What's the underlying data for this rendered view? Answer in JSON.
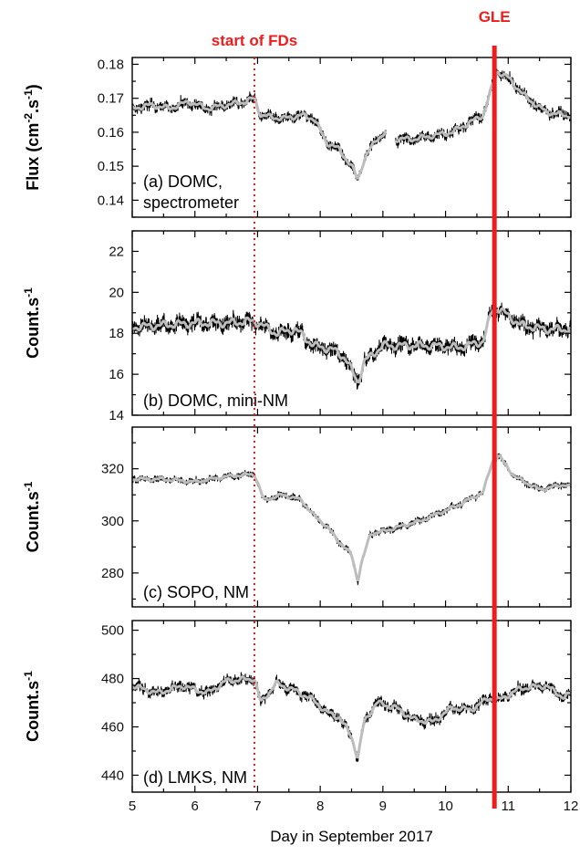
{
  "chart_data": {
    "type": "line",
    "x_axis": {
      "label": "Day in September 2017",
      "range": [
        5,
        12
      ],
      "ticks": [
        5,
        6,
        7,
        8,
        9,
        10,
        11,
        12
      ],
      "tick_labels": [
        "5",
        "6",
        "7",
        "8",
        "9",
        "10",
        "11",
        "12"
      ]
    },
    "annotations": {
      "fd_start": {
        "x": 6.95,
        "label": "start of FDs",
        "color": "#ee1c1c",
        "style": "dotted"
      },
      "gle": {
        "x": 10.78,
        "label": "GLE",
        "color": "#ee1c1c",
        "style": "solid"
      }
    },
    "colors": {
      "raw": "#000000",
      "smooth": "#bdbdbd",
      "marker": "#ee1c1c"
    },
    "panels": [
      {
        "id": "a",
        "label_lines": [
          "(a) DOMC,",
          "spectrometer"
        ],
        "ylabel": "Flux (cm-2.s-1)",
        "ylabel_parts": {
          "base": "Flux (cm",
          "sup1": "-2",
          "mid": ".s",
          "sup2": "-1",
          "end": ")"
        },
        "ylim": [
          0.135,
          0.182
        ],
        "yticks": [
          0.14,
          0.15,
          0.16,
          0.17,
          0.18
        ],
        "ytick_labels": [
          "0.14",
          "0.15",
          "0.16",
          "0.17",
          "0.18"
        ],
        "noise": 0.0022,
        "gaps": [
          [
            9.05,
            9.2
          ]
        ],
        "series": {
          "x": [
            5.0,
            5.3,
            5.6,
            5.9,
            6.2,
            6.5,
            6.8,
            6.95,
            7.05,
            7.4,
            7.7,
            7.9,
            8.1,
            8.3,
            8.5,
            8.6,
            8.7,
            8.9,
            9.05,
            9.2,
            9.5,
            9.8,
            10.1,
            10.4,
            10.6,
            10.72,
            10.82,
            11.0,
            11.3,
            11.6,
            11.9,
            12.0
          ],
          "y": [
            0.167,
            0.168,
            0.167,
            0.169,
            0.167,
            0.168,
            0.169,
            0.17,
            0.165,
            0.164,
            0.165,
            0.164,
            0.157,
            0.155,
            0.15,
            0.146,
            0.152,
            0.158,
            0.16,
            0.158,
            0.158,
            0.159,
            0.16,
            0.163,
            0.165,
            0.172,
            0.178,
            0.176,
            0.17,
            0.166,
            0.165,
            0.165
          ]
        }
      },
      {
        "id": "b",
        "label_lines": [
          "(b) DOMC, mini-NM"
        ],
        "ylabel": "Count.s-1",
        "ylabel_parts": {
          "base": "Count.s",
          "sup1": "-1"
        },
        "ylim": [
          14,
          23
        ],
        "yticks": [
          14,
          16,
          18,
          20,
          22
        ],
        "ytick_labels": [
          "14",
          "16",
          "18",
          "20",
          "22"
        ],
        "noise": 0.55,
        "gaps": [],
        "series": {
          "x": [
            5.0,
            5.5,
            6.0,
            6.5,
            6.95,
            7.3,
            7.6,
            7.9,
            8.2,
            8.4,
            8.6,
            8.7,
            9.0,
            9.4,
            9.8,
            10.2,
            10.6,
            10.75,
            10.85,
            11.2,
            11.6,
            12.0
          ],
          "y": [
            18.3,
            18.4,
            18.5,
            18.5,
            18.6,
            18.0,
            18.2,
            17.4,
            17.2,
            16.8,
            15.6,
            16.6,
            17.4,
            17.4,
            17.4,
            17.3,
            17.6,
            19.2,
            19.2,
            18.4,
            18.2,
            18.2
          ]
        }
      },
      {
        "id": "c",
        "label_lines": [
          "(c) SOPO, NM"
        ],
        "ylabel": "Count.s-1",
        "ylabel_parts": {
          "base": "Count.s",
          "sup1": "-1"
        },
        "ylim": [
          267,
          336
        ],
        "yticks": [
          280,
          300,
          320
        ],
        "ytick_labels": [
          "280",
          "300",
          "320"
        ],
        "noise": 1.8,
        "gaps": [],
        "series": {
          "x": [
            5.0,
            5.5,
            6.0,
            6.5,
            6.95,
            7.1,
            7.4,
            7.7,
            7.9,
            8.1,
            8.3,
            8.5,
            8.6,
            8.65,
            8.8,
            9.0,
            9.3,
            9.6,
            9.9,
            10.2,
            10.6,
            10.75,
            10.85,
            11.1,
            11.5,
            11.9,
            12.0
          ],
          "y": [
            316,
            316,
            315,
            317,
            318,
            308,
            310,
            308,
            302,
            298,
            292,
            287,
            277,
            283,
            295,
            296,
            298,
            300,
            303,
            306,
            311,
            323,
            325,
            317,
            312,
            314,
            313
          ]
        }
      },
      {
        "id": "d",
        "label_lines": [
          "(d) LMKS, NM"
        ],
        "ylabel": "Count.s-1",
        "ylabel_parts": {
          "base": "Count.s",
          "sup1": "-1"
        },
        "ylim": [
          433,
          504
        ],
        "yticks": [
          440,
          460,
          480,
          500
        ],
        "ytick_labels": [
          "440",
          "460",
          "480",
          "500"
        ],
        "noise": 3.2,
        "gaps": [],
        "series": {
          "x": [
            5.0,
            5.4,
            5.8,
            6.2,
            6.5,
            6.95,
            7.05,
            7.3,
            7.6,
            7.9,
            8.1,
            8.3,
            8.5,
            8.6,
            8.7,
            8.9,
            9.2,
            9.5,
            9.8,
            10.1,
            10.4,
            10.7,
            10.85,
            11.2,
            11.6,
            11.9,
            12.0
          ],
          "y": [
            477,
            474,
            477,
            474,
            479,
            480,
            470,
            478,
            475,
            471,
            466,
            464,
            456,
            447,
            462,
            470,
            468,
            463,
            462,
            468,
            467,
            472,
            471,
            476,
            477,
            472,
            474
          ]
        }
      }
    ]
  }
}
